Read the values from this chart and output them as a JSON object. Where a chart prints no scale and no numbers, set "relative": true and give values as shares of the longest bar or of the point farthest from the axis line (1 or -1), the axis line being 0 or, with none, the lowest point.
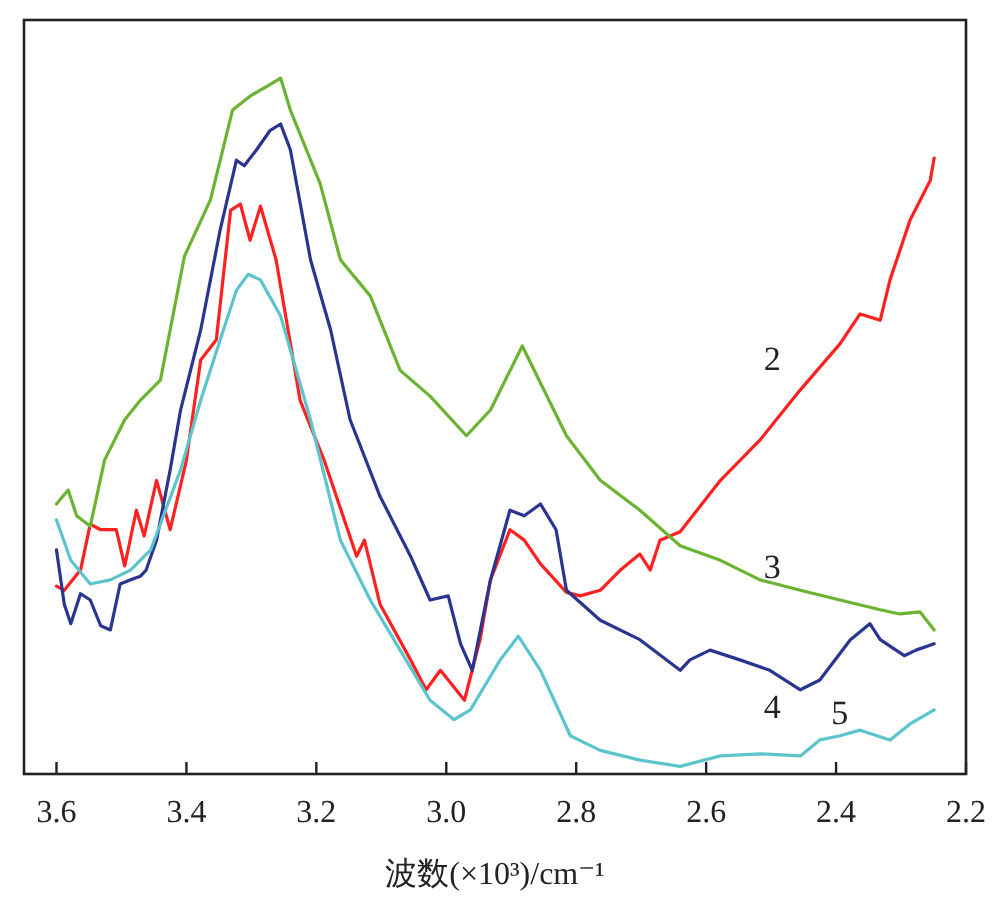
{
  "chart_data": {
    "type": "line",
    "relative": true,
    "xlabel": "波数(×10³)/cm⁻¹",
    "xlim": [
      3.65,
      2.2
    ],
    "xticks": [
      {
        "value": 3.6,
        "label": "3.6"
      },
      {
        "value": 3.4,
        "label": "3.4"
      },
      {
        "value": 3.2,
        "label": "3.2"
      },
      {
        "value": 3.0,
        "label": "3.0"
      },
      {
        "value": 2.8,
        "label": "2.8"
      },
      {
        "value": 2.6,
        "label": "2.6"
      },
      {
        "value": 2.4,
        "label": "2.4"
      },
      {
        "value": 2.2,
        "label": "2.2"
      }
    ],
    "tick_labels": "x",
    "grid": false,
    "legend": false,
    "marker": "none",
    "line_style": "solid",
    "series": [
      {
        "name": "2",
        "color": "#ff2020",
        "x": [
          3.6,
          3.588,
          3.563,
          3.548,
          3.532,
          3.508,
          3.495,
          3.477,
          3.465,
          3.446,
          3.425,
          3.4,
          3.378,
          3.354,
          3.332,
          3.317,
          3.302,
          3.286,
          3.262,
          3.225,
          3.188,
          3.138,
          3.126,
          3.102,
          3.055,
          3.031,
          3.009,
          2.972,
          2.948,
          2.932,
          2.902,
          2.88,
          2.855,
          2.815,
          2.794,
          2.763,
          2.732,
          2.702,
          2.686,
          2.671,
          2.64,
          2.578,
          2.517,
          2.455,
          2.394,
          2.363,
          2.332,
          2.317,
          2.286,
          2.255,
          2.249
        ],
        "values": [
          0.27,
          0.264,
          0.293,
          0.359,
          0.351,
          0.351,
          0.299,
          0.379,
          0.342,
          0.422,
          0.351,
          0.451,
          0.595,
          0.624,
          0.81,
          0.819,
          0.767,
          0.816,
          0.739,
          0.537,
          0.451,
          0.313,
          0.336,
          0.244,
          0.164,
          0.121,
          0.149,
          0.106,
          0.193,
          0.279,
          0.351,
          0.336,
          0.302,
          0.261,
          0.256,
          0.264,
          0.293,
          0.316,
          0.293,
          0.336,
          0.348,
          0.422,
          0.48,
          0.552,
          0.618,
          0.661,
          0.652,
          0.71,
          0.796,
          0.853,
          0.885
        ]
      },
      {
        "name": "3",
        "color": "#6ab432",
        "x": [
          3.6,
          3.582,
          3.569,
          3.548,
          3.526,
          3.495,
          3.471,
          3.44,
          3.403,
          3.363,
          3.329,
          3.302,
          3.271,
          3.255,
          3.24,
          3.194,
          3.163,
          3.117,
          3.071,
          3.025,
          2.969,
          2.932,
          2.883,
          2.815,
          2.763,
          2.702,
          2.64,
          2.578,
          2.517,
          2.455,
          2.394,
          2.332,
          2.302,
          2.271,
          2.249
        ],
        "values": [
          0.388,
          0.408,
          0.371,
          0.356,
          0.451,
          0.509,
          0.537,
          0.566,
          0.744,
          0.825,
          0.954,
          0.974,
          0.991,
          1.0,
          0.954,
          0.848,
          0.739,
          0.687,
          0.58,
          0.543,
          0.486,
          0.523,
          0.615,
          0.486,
          0.422,
          0.379,
          0.328,
          0.307,
          0.279,
          0.264,
          0.25,
          0.236,
          0.23,
          0.233,
          0.207
        ]
      },
      {
        "name": "4",
        "color": "#2a3590",
        "x": [
          3.6,
          3.588,
          3.578,
          3.563,
          3.548,
          3.532,
          3.517,
          3.502,
          3.486,
          3.471,
          3.462,
          3.446,
          3.425,
          3.409,
          3.378,
          3.348,
          3.323,
          3.311,
          3.292,
          3.271,
          3.255,
          3.24,
          3.209,
          3.178,
          3.148,
          3.102,
          3.055,
          3.025,
          2.997,
          2.978,
          2.96,
          2.932,
          2.902,
          2.88,
          2.855,
          2.831,
          2.815,
          2.763,
          2.702,
          2.64,
          2.625,
          2.594,
          2.548,
          2.502,
          2.455,
          2.425,
          2.378,
          2.348,
          2.332,
          2.295,
          2.277,
          2.249
        ],
        "values": [
          0.322,
          0.244,
          0.216,
          0.259,
          0.25,
          0.213,
          0.207,
          0.273,
          0.279,
          0.284,
          0.293,
          0.336,
          0.437,
          0.523,
          0.638,
          0.782,
          0.882,
          0.874,
          0.897,
          0.925,
          0.934,
          0.897,
          0.739,
          0.638,
          0.509,
          0.399,
          0.313,
          0.25,
          0.256,
          0.187,
          0.149,
          0.279,
          0.379,
          0.371,
          0.388,
          0.351,
          0.264,
          0.221,
          0.193,
          0.149,
          0.164,
          0.178,
          0.164,
          0.149,
          0.121,
          0.135,
          0.193,
          0.216,
          0.193,
          0.17,
          0.178,
          0.187
        ]
      },
      {
        "name": "5",
        "color": "#5cc4cc",
        "x": [
          3.6,
          3.578,
          3.548,
          3.517,
          3.486,
          3.455,
          3.409,
          3.378,
          3.348,
          3.323,
          3.305,
          3.286,
          3.255,
          3.209,
          3.163,
          3.117,
          3.071,
          3.025,
          2.988,
          2.963,
          2.917,
          2.889,
          2.855,
          2.809,
          2.763,
          2.702,
          2.64,
          2.578,
          2.517,
          2.455,
          2.425,
          2.394,
          2.363,
          2.317,
          2.286,
          2.249
        ],
        "values": [
          0.365,
          0.307,
          0.273,
          0.279,
          0.293,
          0.322,
          0.437,
          0.537,
          0.624,
          0.695,
          0.718,
          0.71,
          0.658,
          0.509,
          0.336,
          0.25,
          0.178,
          0.106,
          0.078,
          0.092,
          0.164,
          0.198,
          0.149,
          0.055,
          0.034,
          0.02,
          0.011,
          0.026,
          0.029,
          0.026,
          0.049,
          0.055,
          0.063,
          0.049,
          0.072,
          0.092
        ]
      }
    ]
  }
}
